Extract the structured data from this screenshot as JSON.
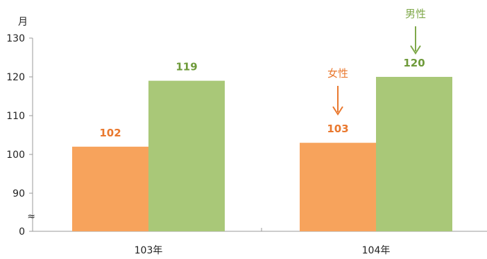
{
  "chart_data": {
    "type": "bar",
    "categories": [
      "103年",
      "104年"
    ],
    "series": [
      {
        "name": "女性",
        "values": [
          102,
          103
        ],
        "color": "#F7A35C"
      },
      {
        "name": "男性",
        "values": [
          119,
          120
        ],
        "color": "#A9C878"
      }
    ],
    "ylabel": "月",
    "yticks": [
      "0",
      "90",
      "100",
      "110",
      "120",
      "130"
    ],
    "axis_break": "≈",
    "ylim": [
      90,
      130
    ],
    "grid": false,
    "annotations": [
      {
        "text": "女性",
        "series": "女性",
        "category": "104年",
        "color": "#E9782E",
        "arrow": "down"
      },
      {
        "text": "男性",
        "series": "男性",
        "category": "104年",
        "color": "#7FA84A",
        "arrow": "down"
      }
    ],
    "value_label_colors": {
      "女性": "#E9782E",
      "男性": "#6E9A3A"
    }
  }
}
